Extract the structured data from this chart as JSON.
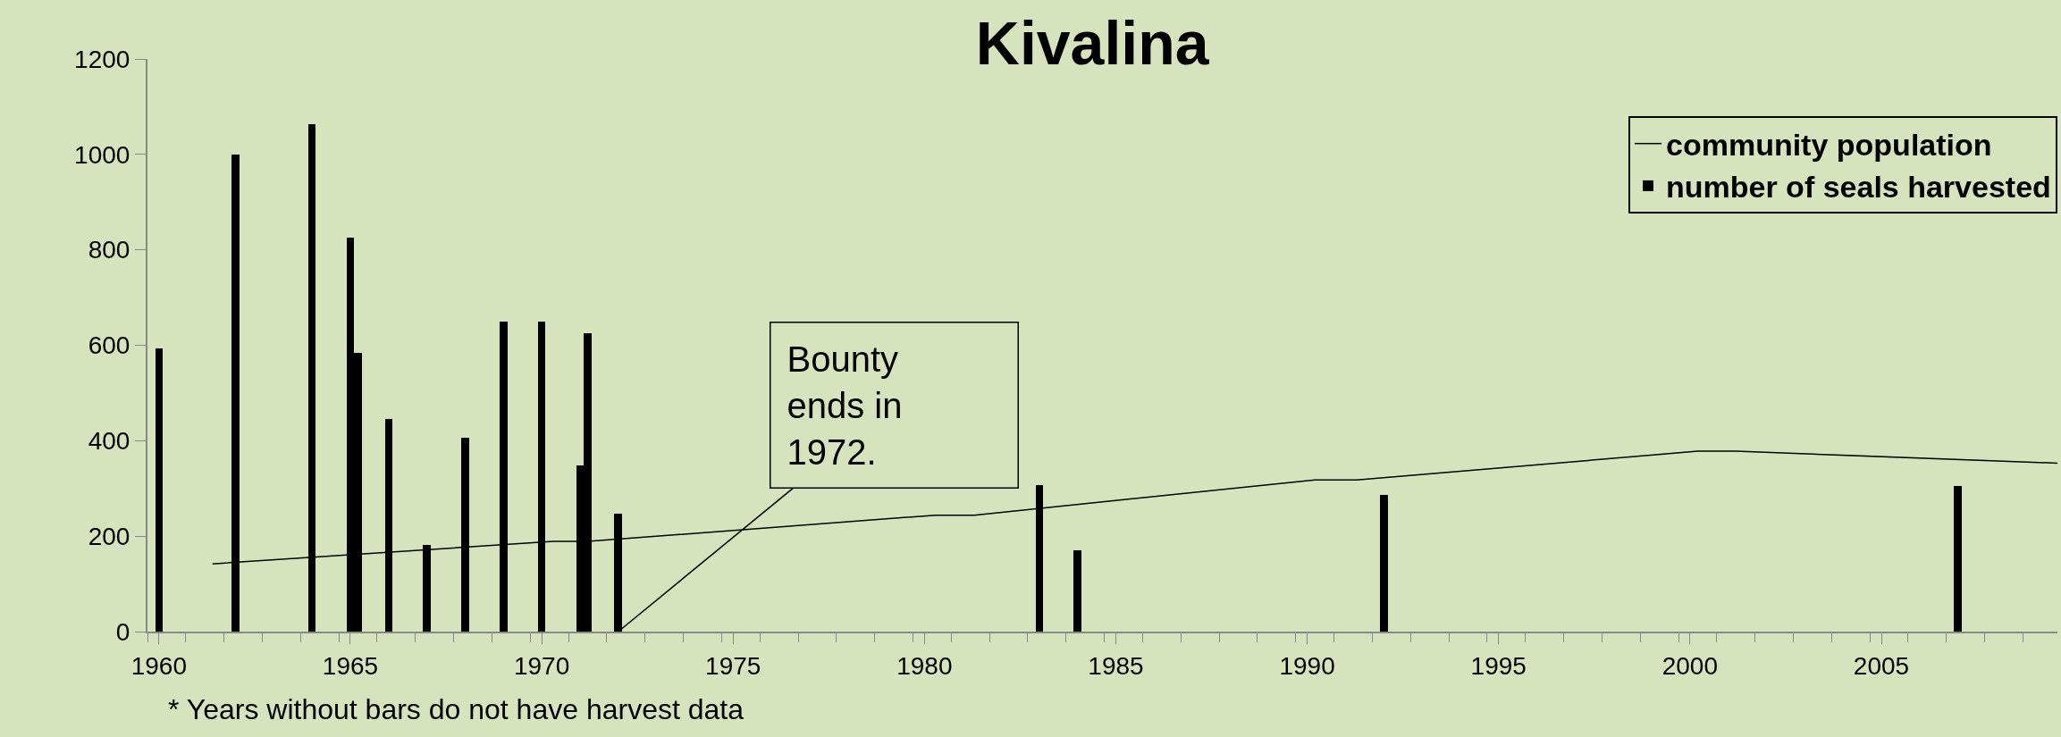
{
  "chart_data": {
    "type": "bar",
    "title": "Kivalina",
    "xlim": [
      1959.7,
      2009.6
    ],
    "xticks": [
      1960,
      1965,
      1970,
      1975,
      1980,
      1985,
      1990,
      1995,
      2000,
      2005
    ],
    "ylim": [
      0,
      1200
    ],
    "yticks": [
      0,
      200,
      400,
      600,
      800,
      1000,
      1200
    ],
    "grid": false,
    "legend": "top right",
    "series": [
      {
        "name": "community population",
        "type": "line",
        "color": "#000000",
        "x": [
          1961.4,
          1970.3,
          1971.2,
          1980.3,
          1981.3,
          1990.2,
          1991.3,
          2000.2,
          2001.2,
          2009.6
        ],
        "values": [
          142,
          189,
          189,
          244,
          244,
          318,
          318,
          378,
          378,
          353
        ]
      },
      {
        "name": "number of seals harvested",
        "color": "#000000",
        "x": [
          1960,
          1962,
          1964,
          1965,
          1965.2,
          1966,
          1967,
          1968,
          1969,
          1970,
          1971,
          1971.2,
          1972,
          1983,
          1984,
          1992,
          2007
        ],
        "values": [
          594,
          1000,
          1063,
          826,
          585,
          445,
          181,
          406,
          650,
          650,
          349,
          625,
          248,
          307,
          171,
          287,
          305
        ]
      }
    ],
    "annotations": [
      {
        "text": "Bounty\nends in\n1972.",
        "x": 1972,
        "y": 0
      },
      "* Years without bars do not have harvest data"
    ]
  }
}
